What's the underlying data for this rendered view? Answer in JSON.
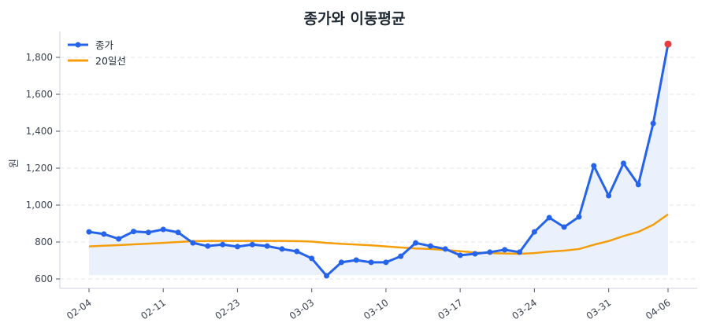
{
  "chart_data": {
    "type": "line",
    "title": "종가와 이동평균",
    "xlabel": "",
    "ylabel": "원",
    "ylim": [
      550,
      1940
    ],
    "yticks": [
      600,
      800,
      1000,
      1200,
      1400,
      1600,
      1800
    ],
    "ytick_labels": [
      "600",
      "800",
      "1,000",
      "1,200",
      "1,400",
      "1,600",
      "1,800"
    ],
    "xtick_labels": [
      "02-04",
      "02-11",
      "02-23",
      "03-03",
      "03-10",
      "03-17",
      "03-24",
      "03-31",
      "04-06"
    ],
    "xtick_indices": [
      0,
      5,
      10,
      15,
      20,
      25,
      30,
      35,
      39
    ],
    "grid": {
      "y": true,
      "x": false,
      "style": "dashed"
    },
    "legend_position": "upper left",
    "series": [
      {
        "name": "종가",
        "color": "#2563eb",
        "marker": "circle",
        "fill": "#e8eefb",
        "values": [
          855,
          843,
          817,
          857,
          852,
          868,
          852,
          795,
          778,
          786,
          775,
          786,
          778,
          762,
          749,
          711,
          617,
          690,
          702,
          690,
          690,
          723,
          795,
          778,
          762,
          728,
          736,
          745,
          758,
          745,
          855,
          932,
          881,
          936,
          1213,
          1051,
          1226,
          1111,
          1442,
          1872
        ]
      },
      {
        "name": "20일선",
        "color": "#f59e0b",
        "values": [
          776,
          780,
          783,
          787,
          791,
          795,
          800,
          804,
          806,
          806,
          806,
          806,
          806,
          806,
          805,
          802,
          795,
          790,
          786,
          782,
          776,
          770,
          765,
          762,
          757,
          750,
          743,
          740,
          738,
          736,
          740,
          748,
          753,
          762,
          785,
          805,
          832,
          855,
          893,
          950
        ]
      }
    ],
    "highlight_last_point": {
      "color": "#e53e3e",
      "value": 1872,
      "label": "04-06"
    }
  },
  "legend": {
    "items": [
      {
        "label": "종가",
        "color": "#2563eb"
      },
      {
        "label": "20일선",
        "color": "#f59e0b"
      }
    ]
  }
}
